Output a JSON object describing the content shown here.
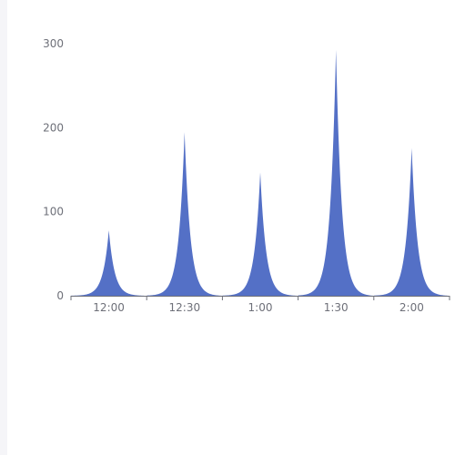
{
  "chart_data": {
    "type": "area",
    "title": "",
    "xlabel": "",
    "ylabel": "",
    "ylim": [
      0,
      300
    ],
    "yticks": [
      0,
      100,
      200,
      300
    ],
    "x_ticks": [
      "12:00",
      "12:30",
      "1:00",
      "1:30",
      "2:00"
    ],
    "grid": false,
    "legend": "none",
    "colors": {
      "area_fill": "#5470c6",
      "axis": "#6e7079",
      "tick_text": "#6e7079"
    },
    "series": [
      {
        "peaks": [
          {
            "x": "12:00",
            "y": 78
          },
          {
            "x": "12:30",
            "y": 195
          },
          {
            "x": "1:00",
            "y": 147
          },
          {
            "x": "1:30",
            "y": 293
          },
          {
            "x": "2:00",
            "y": 176
          }
        ]
      }
    ]
  }
}
